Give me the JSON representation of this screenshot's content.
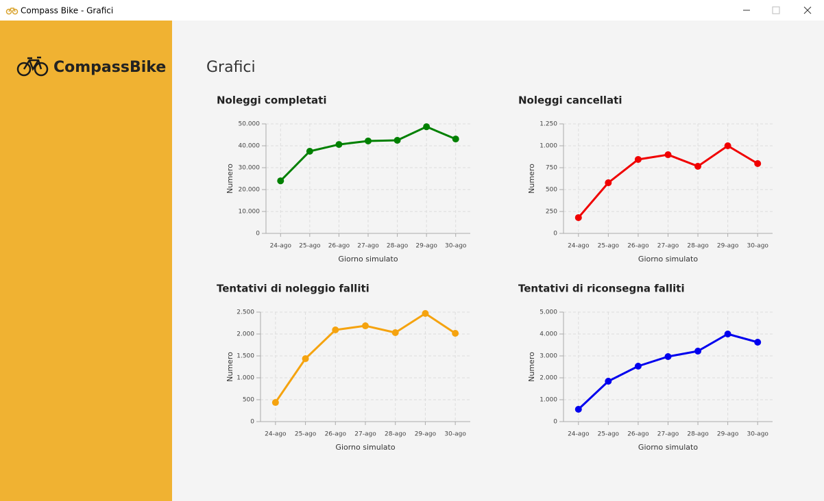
{
  "window": {
    "title": "Compass Bike - Grafici"
  },
  "sidebar": {
    "brand": "CompassBike"
  },
  "page": {
    "heading": "Grafici"
  },
  "chart_data": [
    {
      "type": "line",
      "title": "Noleggi completati",
      "x_label": "Giorno simulato",
      "y_label": "Numero",
      "categories": [
        "24-ago",
        "25-ago",
        "26-ago",
        "27-ago",
        "28-ago",
        "29-ago",
        "30-ago"
      ],
      "values": [
        24000,
        37500,
        40600,
        42200,
        42500,
        48700,
        43100
      ],
      "color": "#008000",
      "ylim": [
        0,
        50000
      ],
      "yticks": [
        0,
        {
          "value": 10000,
          "label": "10.000"
        },
        {
          "value": 20000,
          "label": "20.000"
        },
        {
          "value": 30000,
          "label": "30.000"
        },
        {
          "value": 40000,
          "label": "40.000"
        },
        {
          "value": 50000,
          "label": "50.000"
        }
      ],
      "grid": true
    },
    {
      "type": "line",
      "title": "Noleggi cancellati",
      "x_label": "Giorno simulato",
      "y_label": "Numero",
      "categories": [
        "24-ago",
        "25-ago",
        "26-ago",
        "27-ago",
        "28-ago",
        "29-ago",
        "30-ago"
      ],
      "values": [
        180,
        578,
        844,
        898,
        766,
        1000,
        797
      ],
      "color": "#f00000",
      "ylim": [
        0,
        1250
      ],
      "yticks": [
        0,
        250,
        500,
        750,
        {
          "value": 1000,
          "label": "1.000"
        },
        {
          "value": 1250,
          "label": "1.250"
        }
      ],
      "grid": true
    },
    {
      "type": "line",
      "title": "Tentativi di noleggio falliti",
      "x_label": "Giorno simulato",
      "y_label": "Numero",
      "categories": [
        "24-ago",
        "25-ago",
        "26-ago",
        "27-ago",
        "28-ago",
        "29-ago",
        "30-ago"
      ],
      "values": [
        437,
        1437,
        2094,
        2187,
        2031,
        2469,
        2016
      ],
      "color": "#f5a30f",
      "ylim": [
        0,
        2500
      ],
      "yticks": [
        0,
        500,
        {
          "value": 1000,
          "label": "1.000"
        },
        {
          "value": 1500,
          "label": "1.500"
        },
        {
          "value": 2000,
          "label": "2.000"
        },
        {
          "value": 2500,
          "label": "2.500"
        }
      ],
      "grid": true
    },
    {
      "type": "line",
      "title": "Tentativi di riconsegna falliti",
      "x_label": "Giorno simulato",
      "y_label": "Numero",
      "categories": [
        "24-ago",
        "25-ago",
        "26-ago",
        "27-ago",
        "28-ago",
        "29-ago",
        "30-ago"
      ],
      "values": [
        562,
        1844,
        2531,
        2969,
        3219,
        4000,
        3625
      ],
      "color": "#0000ee",
      "ylim": [
        0,
        5000
      ],
      "yticks": [
        0,
        {
          "value": 1000,
          "label": "1.000"
        },
        {
          "value": 2000,
          "label": "2.000"
        },
        {
          "value": 3000,
          "label": "3.000"
        },
        {
          "value": 4000,
          "label": "4.000"
        },
        {
          "value": 5000,
          "label": "5.000"
        }
      ],
      "grid": true
    }
  ]
}
